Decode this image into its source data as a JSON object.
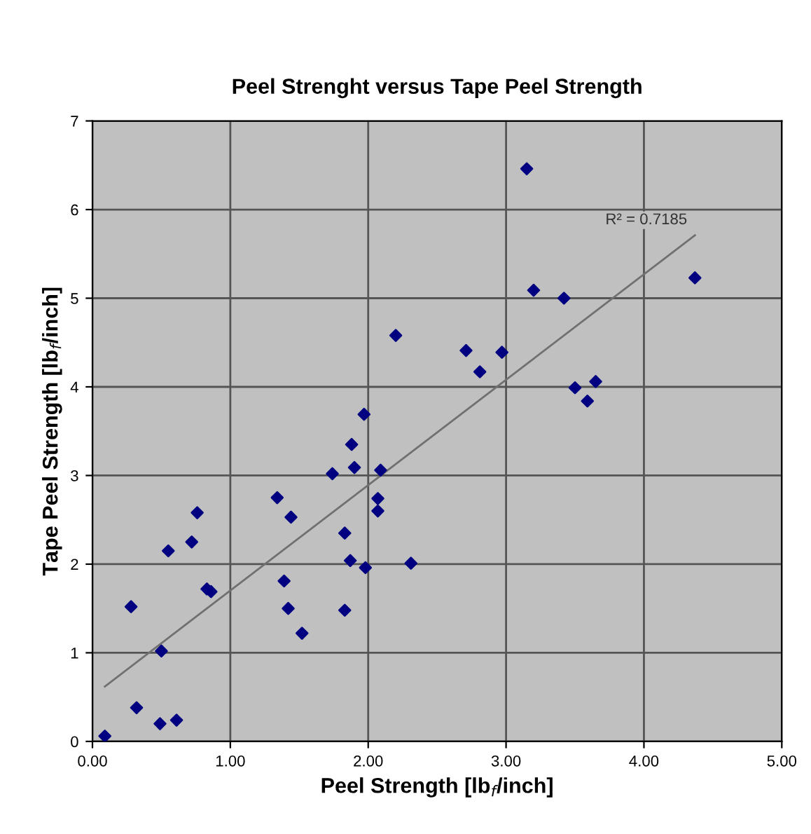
{
  "chart_data": {
    "type": "scatter",
    "title": "Peel Strenght versus Tape Peel Strength",
    "xlabel": "Peel Strength [lb$_{f}$/inch]",
    "ylabel": "Tape Peel Strength [lb$_{f}$/inch]",
    "series": [
      {
        "color": "#000080",
        "marker": "diamond",
        "x": [
          0.09,
          0.32,
          0.49,
          0.61,
          0.5,
          0.28,
          0.55,
          0.72,
          0.76,
          0.83,
          0.86,
          1.34,
          1.44,
          1.39,
          1.42,
          1.52,
          1.74,
          1.88,
          1.9,
          1.83,
          1.87,
          1.83,
          1.98,
          2.07,
          2.07,
          2.09,
          2.31,
          2.2,
          1.97,
          3.15,
          3.2,
          3.42,
          4.37,
          2.71,
          2.97,
          2.81,
          3.5,
          3.65,
          3.59
        ],
        "values": [
          0.06,
          0.38,
          0.2,
          0.24,
          1.02,
          1.52,
          2.15,
          2.25,
          2.58,
          1.72,
          1.69,
          2.75,
          2.53,
          1.81,
          1.5,
          1.22,
          3.02,
          3.35,
          3.09,
          2.35,
          2.04,
          1.48,
          1.96,
          2.74,
          2.6,
          3.06,
          2.01,
          4.58,
          3.69,
          6.46,
          5.09,
          5.0,
          5.23,
          4.41,
          4.39,
          4.17,
          3.99,
          4.06,
          3.84
        ]
      },
      {
        "type": "line",
        "color": "#707070",
        "marker": "none",
        "x": [
          0.09,
          4.37
        ],
        "values": [
          0.62,
          5.71
        ]
      }
    ],
    "annotations": [
      "R² = 0.7185"
    ],
    "xlim": [
      0,
      5
    ],
    "ylim": [
      0,
      7
    ],
    "xticks": [
      {
        "value": 0,
        "label": "0.00"
      },
      {
        "value": 1,
        "label": "1.00"
      },
      {
        "value": 2,
        "label": "2.00"
      },
      {
        "value": 3,
        "label": "3.00"
      },
      {
        "value": 4,
        "label": "4.00"
      },
      {
        "value": 5,
        "label": "5.00"
      }
    ],
    "yticks": [
      0,
      1,
      2,
      3,
      4,
      5,
      6,
      7
    ],
    "grid": true,
    "legend": false
  }
}
